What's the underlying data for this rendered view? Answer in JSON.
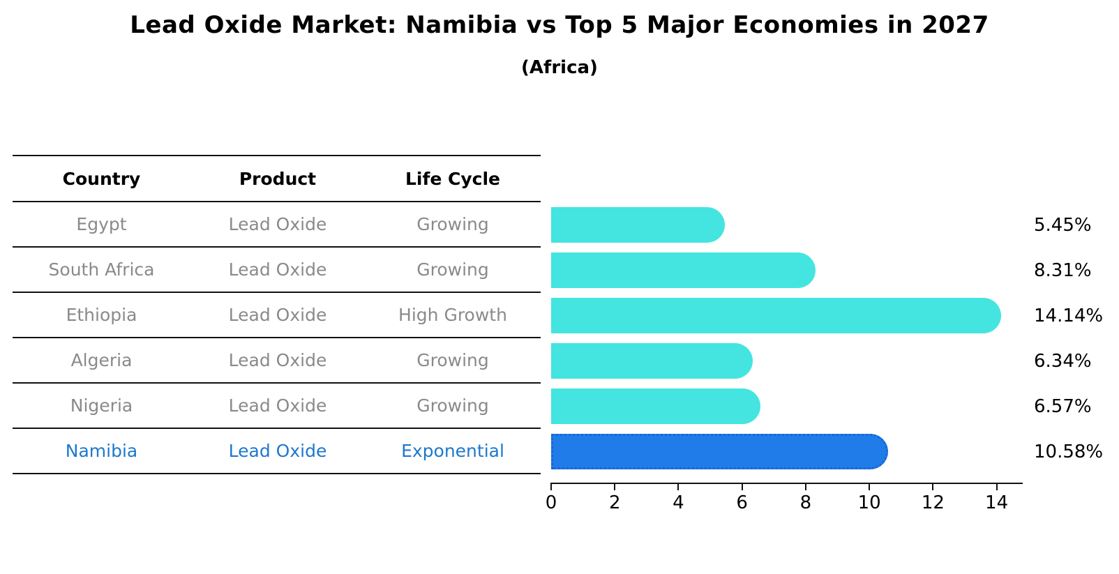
{
  "title": "Lead Oxide Market: Namibia vs Top 5 Major Economies in 2027",
  "subtitle": "(Africa)",
  "table": {
    "headers": [
      "Country",
      "Product",
      "Life Cycle"
    ],
    "rows": [
      {
        "country": "Egypt",
        "product": "Lead Oxide",
        "life_cycle": "Growing",
        "highlight": false
      },
      {
        "country": "South Africa",
        "product": "Lead Oxide",
        "life_cycle": "Growing",
        "highlight": false
      },
      {
        "country": "Ethiopia",
        "product": "Lead Oxide",
        "life_cycle": "High Growth",
        "highlight": false
      },
      {
        "country": "Algeria",
        "product": "Lead Oxide",
        "life_cycle": "Growing",
        "highlight": false
      },
      {
        "country": "Nigeria",
        "product": "Lead Oxide",
        "life_cycle": "Growing",
        "highlight": false
      },
      {
        "country": "Namibia",
        "product": "Lead Oxide",
        "life_cycle": "Exponential",
        "highlight": true
      }
    ]
  },
  "chart_data": {
    "type": "bar",
    "orientation": "horizontal",
    "title": "Lead Oxide Market: Namibia vs Top 5 Major Economies in 2027",
    "subtitle": "(Africa)",
    "categories": [
      "Egypt",
      "South Africa",
      "Ethiopia",
      "Algeria",
      "Nigeria",
      "Namibia"
    ],
    "values": [
      5.45,
      8.31,
      14.14,
      6.34,
      6.57,
      10.58
    ],
    "value_labels": [
      "5.45%",
      "8.31%",
      "14.14%",
      "6.34%",
      "6.57%",
      "10.58%"
    ],
    "unit": "%",
    "xlabel": "",
    "ylabel": "",
    "xlim": [
      0,
      14.82
    ],
    "xticks": [
      0,
      2,
      4,
      6,
      8,
      10,
      12,
      14
    ],
    "grid": false,
    "legend": false,
    "highlight_index": 5,
    "colors": {
      "bar": "#44e5e0",
      "highlight_bar": "#1f7ce8",
      "highlight_border": "#1b66d6",
      "highlight_text": "#1e78cc",
      "row_text": "#8a8a8a",
      "header_text": "#000000",
      "axis": "#111111"
    }
  }
}
